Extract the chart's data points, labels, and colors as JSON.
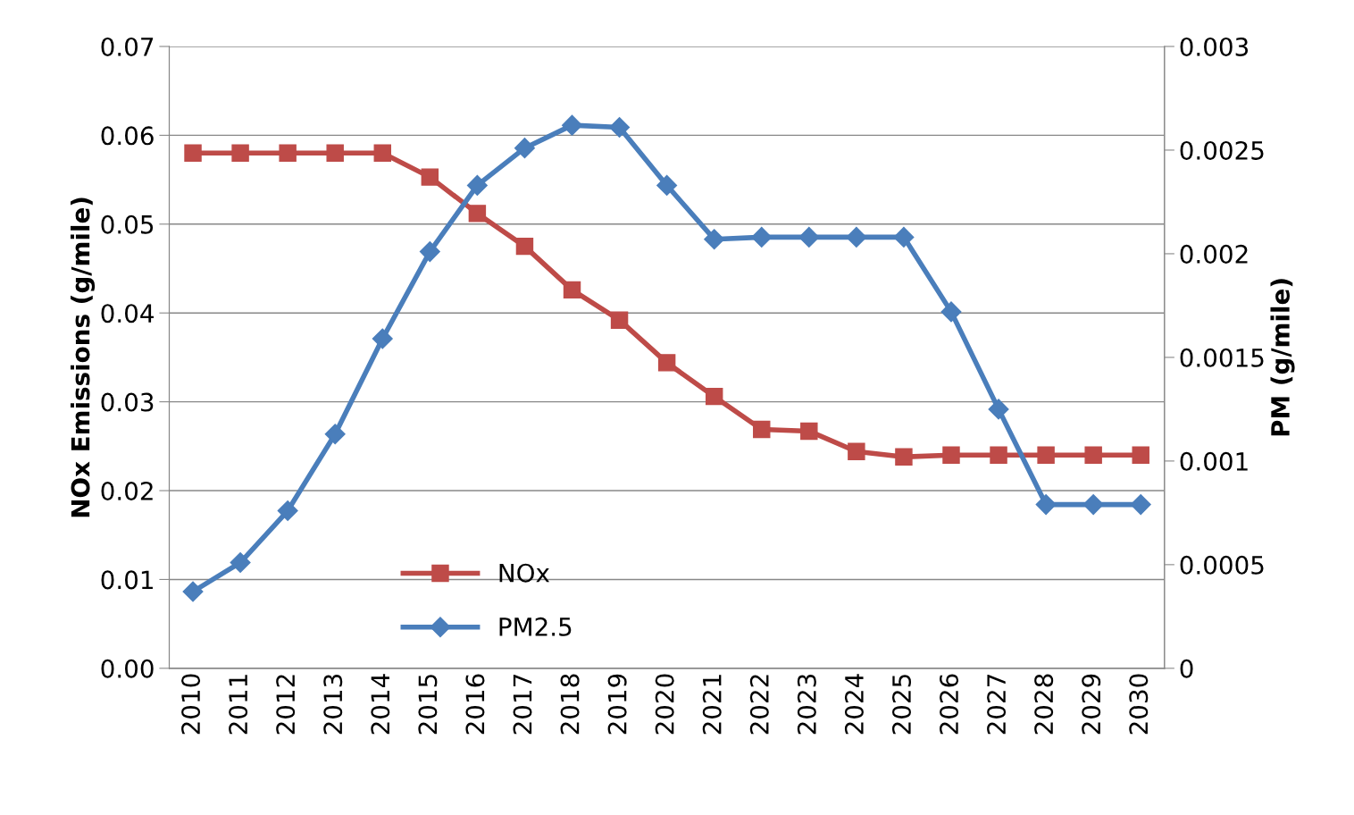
{
  "chart_data": {
    "type": "line",
    "ylabel": "NOx Emissions (g/mile)",
    "y2label": "PM (g/mile)",
    "categories": [
      "2010",
      "2011",
      "2012",
      "2013",
      "2014",
      "2015",
      "2016",
      "2017",
      "2018",
      "2019",
      "2020",
      "2021",
      "2022",
      "2023",
      "2024",
      "2025",
      "2026",
      "2027",
      "2028",
      "2029",
      "2030"
    ],
    "series": [
      {
        "name": "NOx",
        "color": "#be4b48",
        "marker": "square",
        "values": [
          0.058,
          0.058,
          0.058,
          0.058,
          0.058,
          0.0553,
          0.0512,
          0.0475,
          0.0426,
          0.0392,
          0.0344,
          0.0306,
          0.0269,
          0.0267,
          0.0244,
          0.0238,
          0.024,
          0.024,
          0.024,
          0.024,
          0.024
        ]
      },
      {
        "name": "PM2.5",
        "color": "#4a7ebb",
        "marker": "diamond",
        "axis": "y2",
        "values": [
          0.00037,
          0.00051,
          0.00076,
          0.00113,
          0.00159,
          0.00201,
          0.00233,
          0.00251,
          0.00262,
          0.00261,
          0.00233,
          0.00207,
          0.00208,
          0.00208,
          0.00208,
          0.00208,
          0.00172,
          0.00125,
          0.00079,
          0.00079,
          0.00079
        ]
      }
    ],
    "ylim": [
      0,
      0.07
    ],
    "yticks": [
      {
        "value": 0,
        "label": "0.00"
      },
      {
        "value": 0.01,
        "label": "0.01"
      },
      {
        "value": 0.02,
        "label": "0.02"
      },
      {
        "value": 0.03,
        "label": "0.03"
      },
      {
        "value": 0.04,
        "label": "0.04"
      },
      {
        "value": 0.05,
        "label": "0.05"
      },
      {
        "value": 0.06,
        "label": "0.06"
      },
      {
        "value": 0.07,
        "label": "0.07"
      }
    ],
    "y2lim": [
      0,
      0.003
    ],
    "y2ticks": [
      0,
      0.0005,
      0.001,
      0.0015,
      0.002,
      0.0025,
      0.003
    ],
    "grid": "y",
    "legend": "bottom left",
    "line_style": "solid"
  }
}
